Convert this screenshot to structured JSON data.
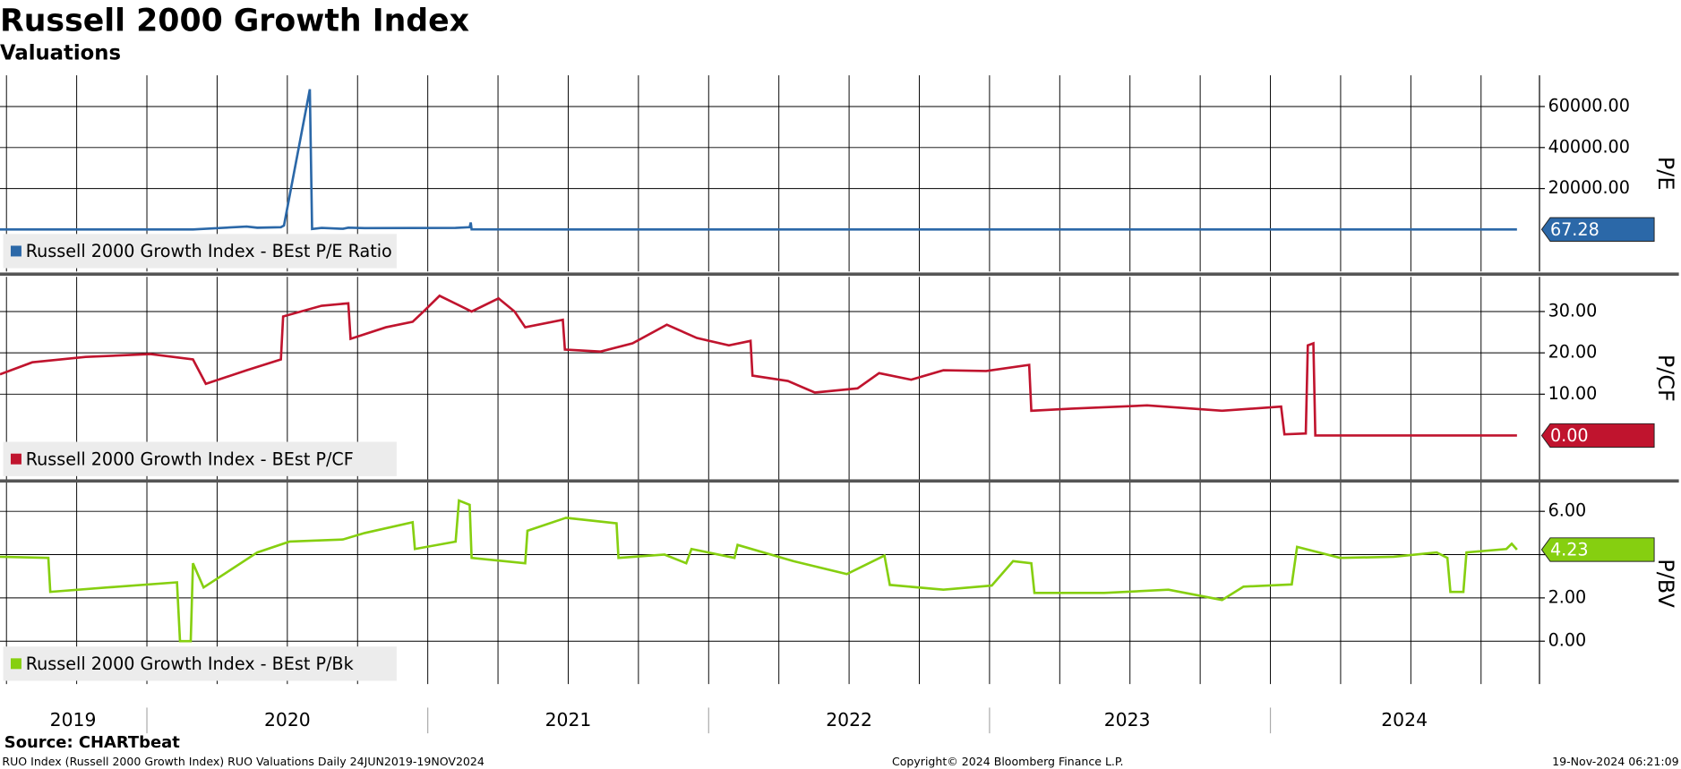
{
  "title": "Russell 2000 Growth Index",
  "subtitle": "Valuations",
  "source": "Source: CHARTbeat",
  "footer": {
    "left": "RUO Index (Russell 2000 Growth Index) RUO Valuations  Daily 24JUN2019-19NOV2024",
    "center": "Copyright© 2024 Bloomberg Finance L.P.",
    "right": "19-Nov-2024 06:21:09"
  },
  "x_axis": {
    "xlim": [
      2019.477,
      2024.958
    ],
    "xticks": [
      {
        "value": 2019.737,
        "label": "2019"
      },
      {
        "value": 2020.5,
        "label": "2020"
      },
      {
        "value": 2021.5,
        "label": "2021"
      },
      {
        "value": 2022.5,
        "label": "2022"
      },
      {
        "value": 2023.49,
        "label": "2023"
      },
      {
        "value": 2024.477,
        "label": "2024"
      }
    ],
    "year_separators": [
      2020,
      2021,
      2022,
      2023,
      2024
    ],
    "xgrid": [
      2019.5,
      2019.75,
      2020,
      2020.25,
      2020.5,
      2020.75,
      2021,
      2021.25,
      2021.5,
      2021.75,
      2022,
      2022.25,
      2022.5,
      2022.75,
      2023,
      2023.25,
      2023.5,
      2023.75,
      2024,
      2024.25,
      2024.5,
      2024.75
    ]
  },
  "chart_data": [
    {
      "type": "line",
      "ylabel": "P/E",
      "ylim": [
        -20400,
        75200
      ],
      "grid": true,
      "yticks": [
        {
          "value": 20000,
          "label": "20000.00"
        },
        {
          "value": 40000,
          "label": "40000.00"
        },
        {
          "value": 60000,
          "label": "60000.00"
        }
      ],
      "x": [
        2019.477,
        2020.164,
        2020.355,
        2020.393,
        2020.477,
        2020.488,
        2020.58,
        2020.588,
        2020.622,
        2020.698,
        2020.717,
        2020.775,
        2021.099,
        2021.149,
        2021.153,
        2021.156,
        2021.492,
        2022.5,
        2023.5,
        2024.878
      ],
      "series": [
        {
          "name": "Russell 2000 Growth Index - BEst P/E Ratio",
          "color": "#2b68a8",
          "values": [
            65,
            70,
            1500,
            900,
            1200,
            2000,
            68400,
            300,
            800,
            400,
            900,
            700,
            800,
            1200,
            3500,
            150,
            80,
            70,
            68,
            67.28
          ]
        }
      ],
      "last_value": {
        "value": 67.28,
        "label": "67.28"
      }
    },
    {
      "type": "line",
      "ylabel": "P/CF",
      "ylim": [
        -10.6,
        38.4
      ],
      "grid": true,
      "yticks": [
        {
          "value": 10,
          "label": "10.00"
        },
        {
          "value": 20,
          "label": "20.00"
        },
        {
          "value": 30,
          "label": "30.00"
        }
      ],
      "x": [
        2019.477,
        2019.592,
        2019.782,
        2020.011,
        2020.164,
        2020.21,
        2020.355,
        2020.477,
        2020.485,
        2020.622,
        2020.717,
        2020.725,
        2020.851,
        2020.946,
        2020.985,
        2021.042,
        2021.156,
        2021.252,
        2021.309,
        2021.347,
        2021.481,
        2021.488,
        2021.614,
        2021.729,
        2021.851,
        2021.958,
        2022.072,
        2022.149,
        2022.156,
        2022.282,
        2022.378,
        2022.53,
        2022.607,
        2022.721,
        2022.836,
        2022.988,
        2023.141,
        2023.149,
        2023.294,
        2023.561,
        2023.828,
        2024.038,
        2024.05,
        2024.126,
        2024.133,
        2024.153,
        2024.16,
        2024.878
      ],
      "series": [
        {
          "name": "Russell 2000 Growth Index - BEst P/CF",
          "color": "#c0142e",
          "values": [
            14.8,
            17.7,
            19,
            19.7,
            18.4,
            12.5,
            15.8,
            18.4,
            28.8,
            31.4,
            32,
            23.4,
            26.2,
            27.5,
            30,
            33.8,
            30,
            33.2,
            30,
            26.2,
            28,
            20.8,
            20.3,
            22.3,
            26.8,
            23.6,
            21.8,
            22.9,
            14.5,
            13.2,
            10.4,
            11.4,
            15.1,
            13.5,
            15.8,
            15.6,
            17.1,
            6,
            6.5,
            7.3,
            6,
            7,
            0.3,
            0.5,
            21.8,
            22.3,
            0,
            0
          ]
        }
      ],
      "last_value": {
        "value": 0,
        "label": "0.00"
      }
    },
    {
      "type": "line",
      "ylabel": "P/BV",
      "ylim": [
        -1.98,
        7.33
      ],
      "grid": true,
      "yticks": [
        {
          "value": 0,
          "label": "0.00"
        },
        {
          "value": 2,
          "label": "2.00"
        },
        {
          "value": 4,
          "label": "4.00"
        },
        {
          "value": 6,
          "label": "6.00"
        }
      ],
      "x": [
        2019.477,
        2019.649,
        2019.656,
        2019.859,
        2020.107,
        2020.118,
        2020.156,
        2020.164,
        2020.202,
        2020.393,
        2020.508,
        2020.698,
        2020.775,
        2020.946,
        2020.954,
        2021.099,
        2021.111,
        2021.149,
        2021.156,
        2021.347,
        2021.355,
        2021.492,
        2021.672,
        2021.679,
        2021.843,
        2021.92,
        2021.939,
        2022.092,
        2022.103,
        2022.301,
        2022.492,
        2022.626,
        2022.645,
        2022.836,
        2023.008,
        2023.084,
        2023.149,
        2023.16,
        2023.408,
        2023.637,
        2023.828,
        2023.904,
        2024.076,
        2024.095,
        2024.248,
        2024.439,
        2024.592,
        2024.63,
        2024.641,
        2024.687,
        2024.698,
        2024.84,
        2024.859,
        2024.878
      ],
      "series": [
        {
          "name": "Russell 2000 Growth Index - BEst P/Bk",
          "color": "#86cf10",
          "values": [
            3.9,
            3.85,
            2.28,
            2.48,
            2.72,
            0,
            0,
            3.6,
            2.48,
            4.1,
            4.6,
            4.7,
            5,
            5.5,
            4.26,
            4.6,
            6.5,
            6.3,
            3.85,
            3.6,
            5.1,
            5.7,
            5.45,
            3.85,
            4,
            3.6,
            4.26,
            3.85,
            4.45,
            3.7,
            3.1,
            3.96,
            2.6,
            2.38,
            2.57,
            3.7,
            3.6,
            2.23,
            2.23,
            2.38,
            1.9,
            2.52,
            2.62,
            4.36,
            3.85,
            3.9,
            4.1,
            3.85,
            2.28,
            2.28,
            4.1,
            4.26,
            4.5,
            4.23
          ]
        }
      ],
      "last_value": {
        "value": 4.23,
        "label": "4.23"
      }
    }
  ]
}
